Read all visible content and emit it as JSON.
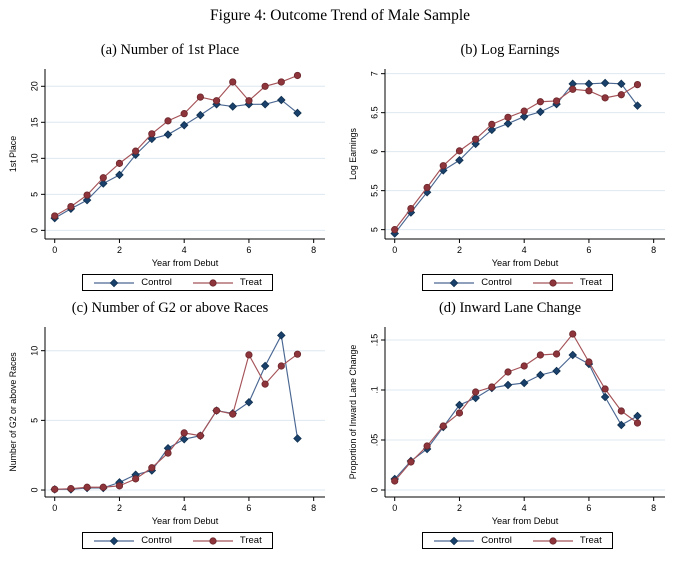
{
  "figure": {
    "title": "Figure 4: Outcome Trend of Male Sample"
  },
  "legend": {
    "items": [
      "Control",
      "Treat"
    ]
  },
  "colors": {
    "grid": "#dee8f0",
    "axis": "#000000",
    "background": "#ffffff",
    "series": [
      {
        "name": "Control",
        "marker": "diamond",
        "line": "#4a6792",
        "fill": "#19416b",
        "stroke": "#10304f"
      },
      {
        "name": "Treat",
        "marker": "circle",
        "line": "#a55358",
        "fill": "#8e353c",
        "stroke": "#6b262b"
      }
    ]
  },
  "chart_data": [
    {
      "type": "line",
      "title": "(a) Number of 1st Place",
      "xlabel": "Year from Debut",
      "ylabel": "1st Place",
      "x": [
        0,
        0.5,
        1,
        1.5,
        2,
        2.5,
        3,
        3.5,
        4,
        4.5,
        5,
        5.5,
        6,
        6.5,
        7,
        7.5
      ],
      "series": [
        {
          "name": "Control",
          "values": [
            1.7,
            3.0,
            4.2,
            6.5,
            7.7,
            10.5,
            12.7,
            13.3,
            14.6,
            16.0,
            17.5,
            17.2,
            17.5,
            17.5,
            18.1,
            16.3
          ]
        },
        {
          "name": "Treat",
          "values": [
            2.0,
            3.3,
            4.9,
            7.3,
            9.3,
            11.0,
            13.4,
            15.2,
            16.2,
            18.5,
            18.0,
            20.6,
            18.0,
            20.0,
            20.6,
            21.5
          ]
        }
      ],
      "xticks": [
        0,
        2,
        4,
        6,
        8
      ],
      "xtick_labels": [
        "0",
        "2",
        "4",
        "6",
        "8"
      ],
      "yticks": [
        0,
        5,
        10,
        15,
        20
      ],
      "ytick_labels": [
        "0",
        "5",
        "10",
        "15",
        "20"
      ],
      "xlim": [
        -0.3,
        8.35
      ],
      "ylim": [
        -1.2,
        22.4
      ],
      "grid": true,
      "legend_position": "bottom"
    },
    {
      "type": "line",
      "title": "(b) Log Earnings",
      "xlabel": "Year from Debut",
      "ylabel": "Log Earnings",
      "x": [
        0,
        0.5,
        1,
        1.5,
        2,
        2.5,
        3,
        3.5,
        4,
        4.5,
        5,
        5.5,
        6,
        6.5,
        7,
        7.5
      ],
      "series": [
        {
          "name": "Control",
          "values": [
            4.95,
            5.22,
            5.48,
            5.76,
            5.89,
            6.1,
            6.28,
            6.36,
            6.45,
            6.51,
            6.61,
            6.87,
            6.87,
            6.88,
            6.87,
            6.59
          ]
        },
        {
          "name": "Treat",
          "values": [
            5.0,
            5.27,
            5.54,
            5.82,
            6.01,
            6.16,
            6.35,
            6.44,
            6.52,
            6.64,
            6.65,
            6.8,
            6.78,
            6.69,
            6.73,
            6.86
          ]
        }
      ],
      "xticks": [
        0,
        2,
        4,
        6,
        8
      ],
      "xtick_labels": [
        "0",
        "2",
        "4",
        "6",
        "8"
      ],
      "yticks": [
        5,
        5.5,
        6,
        6.5,
        7
      ],
      "ytick_labels": [
        "5",
        "5.5",
        "6",
        "6.5",
        "7"
      ],
      "xlim": [
        -0.3,
        8.35
      ],
      "ylim": [
        4.88,
        7.06
      ],
      "grid": true,
      "legend_position": "bottom"
    },
    {
      "type": "line",
      "title": "(c) Number of G2 or above Races",
      "xlabel": "Year from Debut",
      "ylabel": "Number of G2 or above Races",
      "x": [
        0,
        0.5,
        1,
        1.5,
        2,
        2.5,
        3,
        3.5,
        4,
        4.5,
        5,
        5.5,
        6,
        6.5,
        7,
        7.5
      ],
      "series": [
        {
          "name": "Control",
          "values": [
            0.05,
            0.05,
            0.15,
            0.15,
            0.55,
            1.1,
            1.4,
            3.0,
            3.65,
            3.9,
            5.7,
            5.5,
            6.3,
            8.9,
            11.1,
            3.7
          ]
        },
        {
          "name": "Treat",
          "values": [
            0.05,
            0.1,
            0.2,
            0.2,
            0.3,
            0.8,
            1.6,
            2.65,
            4.1,
            3.9,
            5.7,
            5.45,
            9.7,
            7.6,
            8.9,
            9.75
          ]
        }
      ],
      "xticks": [
        0,
        2,
        4,
        6,
        8
      ],
      "xtick_labels": [
        "0",
        "2",
        "4",
        "6",
        "8"
      ],
      "yticks": [
        0,
        5,
        10
      ],
      "ytick_labels": [
        "0",
        "5",
        "10"
      ],
      "xlim": [
        -0.3,
        8.35
      ],
      "ylim": [
        -0.5,
        11.7
      ],
      "grid": true,
      "legend_position": "bottom"
    },
    {
      "type": "line",
      "title": "(d) Inward Lane Change",
      "xlabel": "Year from Debut",
      "ylabel": "Proportion of Inward Lane Change",
      "x": [
        0,
        0.5,
        1,
        1.5,
        2,
        2.5,
        3,
        3.5,
        4,
        4.5,
        5,
        5.5,
        6,
        6.5,
        7,
        7.5
      ],
      "series": [
        {
          "name": "Control",
          "values": [
            0.011,
            0.029,
            0.041,
            0.063,
            0.085,
            0.092,
            0.102,
            0.105,
            0.107,
            0.115,
            0.119,
            0.135,
            0.126,
            0.093,
            0.065,
            0.074
          ]
        },
        {
          "name": "Treat",
          "values": [
            0.009,
            0.028,
            0.044,
            0.064,
            0.077,
            0.098,
            0.103,
            0.118,
            0.124,
            0.135,
            0.136,
            0.156,
            0.128,
            0.101,
            0.079,
            0.067
          ]
        }
      ],
      "xticks": [
        0,
        2,
        4,
        6,
        8
      ],
      "xtick_labels": [
        "0",
        "2",
        "4",
        "6",
        "8"
      ],
      "yticks": [
        0,
        0.05,
        0.1,
        0.15
      ],
      "ytick_labels": [
        "0",
        ".05",
        ".1",
        ".15"
      ],
      "xlim": [
        -0.3,
        8.35
      ],
      "ylim": [
        -0.007,
        0.163
      ],
      "grid": true,
      "legend_position": "bottom"
    }
  ]
}
